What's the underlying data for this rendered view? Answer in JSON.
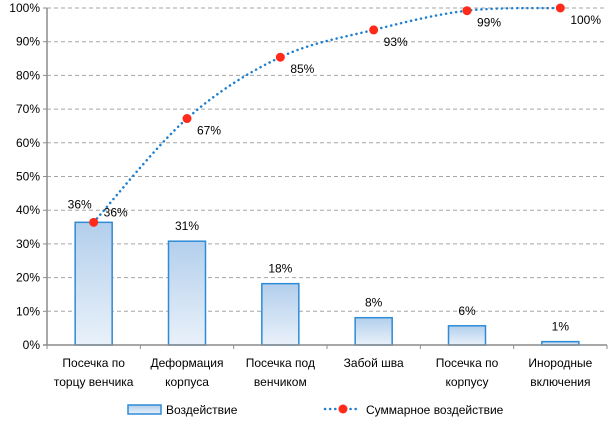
{
  "chart_data": {
    "type": "bar",
    "title": "",
    "xlabel": "",
    "ylabel": "",
    "ylim": [
      0,
      100
    ],
    "yticks": [
      "0%",
      "10%",
      "20%",
      "30%",
      "40%",
      "50%",
      "60%",
      "70%",
      "80%",
      "90%",
      "100%"
    ],
    "grid": true,
    "categories": [
      [
        "Посечка по",
        "торцу венчика"
      ],
      [
        "Деформация",
        "корпуса"
      ],
      [
        "Посечка под",
        "венчиком"
      ],
      [
        "Забой шва"
      ],
      [
        "Посечка по",
        "корпусу"
      ],
      [
        "Инородные",
        "включения"
      ]
    ],
    "series": [
      {
        "name": "Воздействие",
        "type": "bar",
        "values": [
          36.4,
          30.8,
          18.2,
          8.1,
          5.7,
          1.0
        ],
        "labels": [
          "36%",
          "31%",
          "18%",
          "8%",
          "6%",
          "1%"
        ],
        "color": "#2e8bd6",
        "fill": "#bcd5ee"
      },
      {
        "name": "Суммарное воздействие",
        "type": "line",
        "values": [
          36.4,
          67.2,
          85.4,
          93.5,
          99.2,
          100
        ],
        "labels": [
          "36%",
          "67%",
          "85%",
          "93%",
          "99%",
          "100%"
        ],
        "color": "#1f7fcf",
        "marker_color": "#ff2a1a"
      }
    ],
    "legend_position": "bottom"
  }
}
